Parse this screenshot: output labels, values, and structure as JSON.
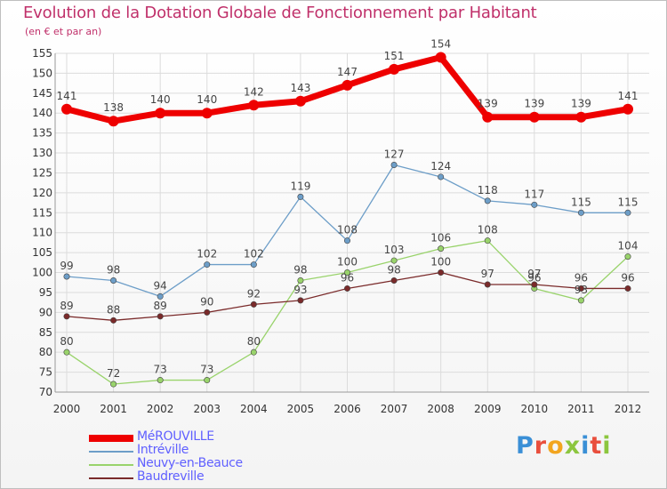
{
  "header": {
    "title": "Evolution de la Dotation Globale de Fonctionnement par Habitant",
    "subtitle": "(en € et par an)"
  },
  "logo": {
    "text": "Proxiti",
    "colors": [
      "#3a8fd6",
      "#e94f3d",
      "#f2a51f",
      "#8cc63e",
      "#3a8fd6",
      "#e94f3d",
      "#8cc63e"
    ]
  },
  "chart_data": {
    "type": "line",
    "categories": [
      "2000",
      "2001",
      "2002",
      "2003",
      "2004",
      "2005",
      "2006",
      "2007",
      "2008",
      "2009",
      "2010",
      "2011",
      "2012"
    ],
    "ylim": [
      70,
      155
    ],
    "yticks": [
      70,
      75,
      80,
      85,
      90,
      95,
      100,
      105,
      110,
      115,
      120,
      125,
      130,
      135,
      140,
      145,
      150,
      155
    ],
    "grid": true,
    "legend_position": "bottom-left",
    "series": [
      {
        "name": "MéROUVILLE",
        "color": "#ee0000",
        "values": [
          141,
          138,
          140,
          140,
          142,
          143,
          147,
          151,
          154,
          139,
          139,
          139,
          141
        ]
      },
      {
        "name": "Intréville",
        "color": "#6d9ec8",
        "values": [
          99,
          98,
          94,
          102,
          102,
          119,
          108,
          127,
          124,
          118,
          117,
          115,
          115
        ]
      },
      {
        "name": "Neuvy-en-Beauce",
        "color": "#99d36b",
        "values": [
          80,
          72,
          73,
          73,
          80,
          98,
          100,
          103,
          106,
          108,
          96,
          93,
          104
        ]
      },
      {
        "name": "Baudreville",
        "color": "#7a2a2a",
        "values": [
          89,
          88,
          89,
          90,
          92,
          93,
          96,
          98,
          100,
          97,
          97,
          96,
          96
        ]
      }
    ]
  }
}
